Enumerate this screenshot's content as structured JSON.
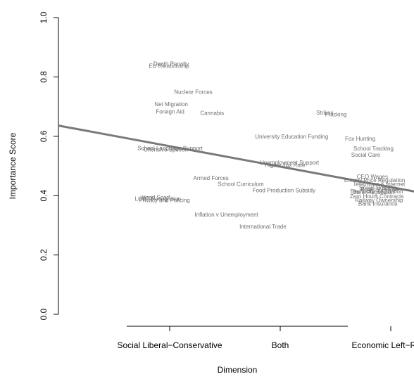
{
  "chart_data": {
    "type": "scatter",
    "title": "",
    "xlabel": "Dimension",
    "ylabel": "Importance Score",
    "ylim": [
      0.0,
      1.0
    ],
    "y_ticks": [
      "0.0",
      "0.2",
      "0.4",
      "0.6",
      "0.8",
      "1.0"
    ],
    "x_categories": [
      "Social Liberal−Conservative",
      "Both",
      "Economic Left−Right"
    ],
    "point_color": "#6e6e6e",
    "trend_color": "#7a7a7a",
    "trend_line": {
      "x": [
        0,
        3.38
      ],
      "y": [
        0.636,
        0.403
      ]
    },
    "points": [
      {
        "label": "Death Penalty",
        "x": 1.02,
        "y": 0.845
      },
      {
        "label": "EU Relationship",
        "x": 1.0,
        "y": 0.838
      },
      {
        "label": "Nuclear Forces",
        "x": 1.22,
        "y": 0.75
      },
      {
        "label": "Net Migration",
        "x": 1.02,
        "y": 0.708
      },
      {
        "label": "Foreign Aid",
        "x": 1.01,
        "y": 0.684
      },
      {
        "label": "Cannabis",
        "x": 1.39,
        "y": 0.679
      },
      {
        "label": "Strikes",
        "x": 2.41,
        "y": 0.68
      },
      {
        "label": "Fracking",
        "x": 2.51,
        "y": 0.674
      },
      {
        "label": "University Education Funding",
        "x": 2.11,
        "y": 0.6
      },
      {
        "label": "Fox Hunting",
        "x": 2.73,
        "y": 0.593
      },
      {
        "label": "School Language Support",
        "x": 1.01,
        "y": 0.56
      },
      {
        "label": "Offensive Speech",
        "x": 0.97,
        "y": 0.556
      },
      {
        "label": "School Tracking",
        "x": 2.85,
        "y": 0.559
      },
      {
        "label": "Social Care",
        "x": 2.78,
        "y": 0.538
      },
      {
        "label": "Unemployment Support",
        "x": 2.09,
        "y": 0.512
      },
      {
        "label": "Higher Tax Rate",
        "x": 2.05,
        "y": 0.504
      },
      {
        "label": "Armed Forces",
        "x": 1.38,
        "y": 0.46
      },
      {
        "label": "School Curriculum",
        "x": 1.65,
        "y": 0.44
      },
      {
        "label": "Food Production Subsidy",
        "x": 2.04,
        "y": 0.418
      },
      {
        "label": "CEO Wages",
        "x": 2.84,
        "y": 0.465
      },
      {
        "label": "Energy Price Regulation",
        "x": 2.86,
        "y": 0.453
      },
      {
        "label": "Telephone & Internet",
        "x": 2.9,
        "y": 0.44
      },
      {
        "label": "Social Housing",
        "x": 2.89,
        "y": 0.427
      },
      {
        "label": "Public v Private",
        "x": 2.91,
        "y": 0.422
      },
      {
        "label": "Electricity Regulation",
        "x": 2.88,
        "y": 0.415
      },
      {
        "label": "Bank Regulation",
        "x": 2.85,
        "y": 0.412
      },
      {
        "label": "Zero Hours Contracts",
        "x": 2.88,
        "y": 0.398
      },
      {
        "label": "Railway Ownership",
        "x": 2.9,
        "y": 0.385
      },
      {
        "label": "Bank Insurance",
        "x": 2.89,
        "y": 0.373
      },
      {
        "label": "Head Scarf",
        "x": 0.88,
        "y": 0.395
      },
      {
        "label": "LGBT Recognition",
        "x": 0.9,
        "y": 0.39
      },
      {
        "label": "Privacy and Policing",
        "x": 0.96,
        "y": 0.385
      },
      {
        "label": "Inflation v Unemployment",
        "x": 1.52,
        "y": 0.336
      },
      {
        "label": "International Trade",
        "x": 1.85,
        "y": 0.296
      }
    ]
  }
}
